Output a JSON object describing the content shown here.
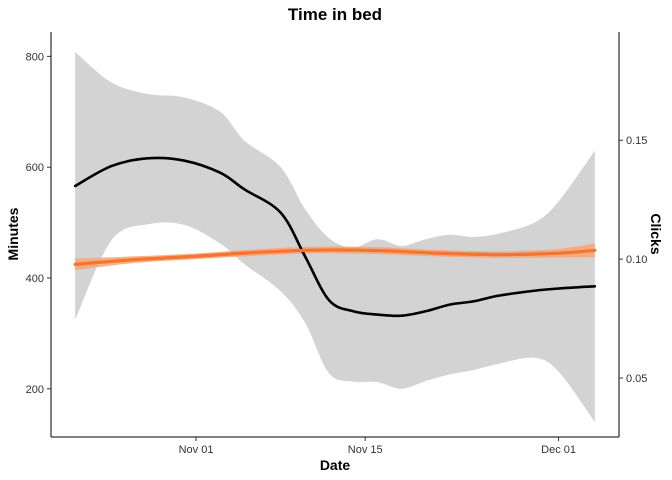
{
  "chart_data": {
    "type": "line",
    "title": "Time in bed",
    "xlabel": "Date",
    "ylabel": "Minutes",
    "y2label": "Clicks",
    "grid": false,
    "xlim": [
      "2020-10-20",
      "2020-12-06"
    ],
    "ylim": [
      113,
      844
    ],
    "y2lim": [
      0.0252,
      0.1955
    ],
    "x_ticks": [
      {
        "date": "2020-11-01",
        "label": "Nov 01"
      },
      {
        "date": "2020-11-15",
        "label": "Nov 15"
      },
      {
        "date": "2020-12-01",
        "label": "Dec 01"
      }
    ],
    "y_ticks": [
      200,
      400,
      600,
      800
    ],
    "y2_ticks": [
      {
        "value": 0.05,
        "label": "0.05"
      },
      {
        "value": 0.1,
        "label": "0.10"
      },
      {
        "value": 0.15,
        "label": "0.15"
      }
    ],
    "series": [
      {
        "axis": "left",
        "color": "#000000",
        "band_color": "#d3d3d3",
        "x": [
          "2020-10-22",
          "2020-10-25",
          "2020-10-28",
          "2020-10-31",
          "2020-11-03",
          "2020-11-05",
          "2020-11-08",
          "2020-11-10",
          "2020-11-12",
          "2020-11-14",
          "2020-11-16",
          "2020-11-18",
          "2020-11-20",
          "2020-11-22",
          "2020-11-24",
          "2020-11-26",
          "2020-11-29",
          "2020-12-01",
          "2020-12-04"
        ],
        "y": [
          566,
          602,
          616,
          612,
          590,
          560,
          518,
          440,
          360,
          340,
          334,
          332,
          340,
          352,
          358,
          368,
          377,
          381,
          385
        ],
        "upper": [
          808,
          753,
          732,
          726,
          700,
          648,
          600,
          525,
          472,
          455,
          470,
          458,
          470,
          478,
          474,
          480,
          500,
          538,
          630
        ],
        "lower": [
          325,
          468,
          497,
          496,
          462,
          425,
          376,
          320,
          228,
          213,
          212,
          200,
          214,
          226,
          234,
          245,
          256,
          231,
          140
        ]
      },
      {
        "axis": "right",
        "color": "#f47433",
        "band_color": "#f9a470",
        "x": [
          "2020-10-22",
          "2020-10-27",
          "2020-11-01",
          "2020-11-06",
          "2020-11-11",
          "2020-11-16",
          "2020-11-21",
          "2020-11-26",
          "2020-12-01",
          "2020-12-04"
        ],
        "y": [
          0.0978,
          0.0998,
          0.1012,
          0.1028,
          0.1038,
          0.1036,
          0.1025,
          0.1019,
          0.1025,
          0.1037
        ],
        "upper": [
          0.1002,
          0.1012,
          0.1024,
          0.1042,
          0.1052,
          0.1051,
          0.1039,
          0.1033,
          0.1043,
          0.1066
        ],
        "lower": [
          0.0954,
          0.0984,
          0.1,
          0.1014,
          0.1024,
          0.1021,
          0.1011,
          0.1005,
          0.1007,
          0.1008
        ]
      }
    ]
  }
}
